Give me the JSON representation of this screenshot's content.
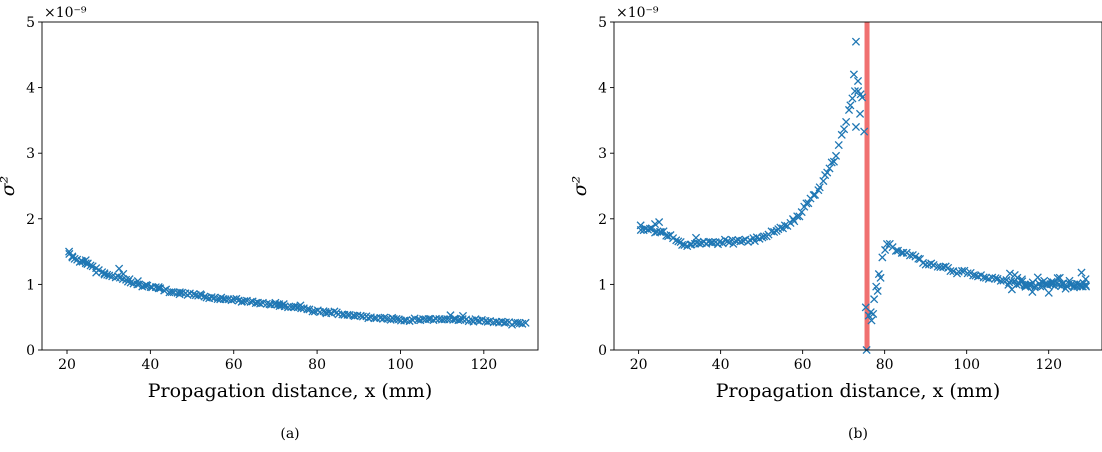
{
  "colors": {
    "marker": "#1f77b4",
    "highlight": "#f07070",
    "axis": "#000000"
  },
  "chart_data": [
    {
      "type": "scatter",
      "caption": "(a)",
      "xlabel": "Propagation distance, x (mm)",
      "ylabel": "σ²",
      "y_scale_label": "×10⁻⁹",
      "xlim": [
        14,
        133
      ],
      "ylim": [
        0,
        5
      ],
      "xticks": [
        20,
        40,
        60,
        80,
        100,
        120
      ],
      "yticks": [
        0,
        1,
        2,
        3,
        4,
        5
      ],
      "marker": "x",
      "curve": [
        [
          20.5,
          1.46
        ],
        [
          22,
          1.38
        ],
        [
          24,
          1.33
        ],
        [
          26,
          1.29
        ],
        [
          28,
          1.2
        ],
        [
          30,
          1.13
        ],
        [
          33,
          1.1
        ],
        [
          36,
          1.01
        ],
        [
          40,
          0.96
        ],
        [
          45,
          0.89
        ],
        [
          50,
          0.84
        ],
        [
          55,
          0.8
        ],
        [
          60,
          0.76
        ],
        [
          65,
          0.73
        ],
        [
          70,
          0.69
        ],
        [
          75,
          0.64
        ],
        [
          80,
          0.59
        ],
        [
          85,
          0.56
        ],
        [
          90,
          0.52
        ],
        [
          95,
          0.49
        ],
        [
          100,
          0.46
        ],
        [
          105,
          0.46
        ],
        [
          110,
          0.47
        ],
        [
          115,
          0.46
        ],
        [
          120,
          0.44
        ],
        [
          125,
          0.42
        ],
        [
          130,
          0.41
        ]
      ],
      "outliers": [
        [
          20.5,
          1.5
        ],
        [
          21.3,
          1.41
        ],
        [
          23.5,
          1.36
        ],
        [
          24.5,
          1.37
        ],
        [
          25,
          1.32
        ],
        [
          27,
          1.18
        ],
        [
          29,
          1.15
        ],
        [
          32.5,
          1.24
        ],
        [
          33.5,
          1.16
        ],
        [
          35,
          1.08
        ],
        [
          37,
          1.05
        ],
        [
          39,
          0.99
        ],
        [
          42,
          0.96
        ],
        [
          47,
          0.85
        ],
        [
          52,
          0.85
        ],
        [
          57,
          0.8
        ],
        [
          62,
          0.74
        ],
        [
          70,
          0.72
        ],
        [
          71,
          0.67
        ],
        [
          72,
          0.7
        ],
        [
          76,
          0.68
        ],
        [
          82,
          0.58
        ],
        [
          98,
          0.49
        ],
        [
          112,
          0.53
        ],
        [
          113,
          0.48
        ],
        [
          115,
          0.52
        ],
        [
          118,
          0.47
        ]
      ],
      "n_points": 170,
      "noise": 0.02
    },
    {
      "type": "scatter",
      "caption": "(b)",
      "xlabel": "Propagation distance, x (mm)",
      "ylabel": "σ²",
      "y_scale_label": "×10⁻⁹",
      "xlim": [
        14,
        133
      ],
      "ylim": [
        0,
        5
      ],
      "xticks": [
        20,
        40,
        60,
        80,
        100,
        120
      ],
      "yticks": [
        0,
        1,
        2,
        3,
        4,
        5
      ],
      "marker": "x",
      "highlight_x": 75.7,
      "segments": [
        {
          "curve": [
            [
              20.5,
              1.85
            ],
            [
              22,
              1.83
            ],
            [
              24,
              1.84
            ],
            [
              26,
              1.8
            ],
            [
              28,
              1.72
            ],
            [
              30,
              1.62
            ],
            [
              32,
              1.6
            ],
            [
              34,
              1.64
            ],
            [
              36,
              1.62
            ],
            [
              40,
              1.64
            ],
            [
              45,
              1.66
            ],
            [
              50,
              1.72
            ],
            [
              55,
              1.85
            ],
            [
              58,
              2.0
            ],
            [
              60,
              2.12
            ],
            [
              62,
              2.3
            ],
            [
              64,
              2.45
            ],
            [
              66,
              2.72
            ],
            [
              68,
              2.95
            ],
            [
              70,
              3.35
            ],
            [
              71,
              3.55
            ],
            [
              72,
              3.8
            ],
            [
              73,
              4.0
            ],
            [
              74,
              3.9
            ]
          ],
          "n_points": 95,
          "noise": 0.04
        },
        {
          "curve": [
            [
              76,
              0.5
            ],
            [
              77,
              0.6
            ],
            [
              78,
              1.0
            ],
            [
              79,
              1.3
            ],
            [
              80,
              1.55
            ],
            [
              81,
              1.62
            ],
            [
              82,
              1.55
            ],
            [
              84,
              1.5
            ],
            [
              86,
              1.45
            ],
            [
              88,
              1.4
            ],
            [
              90,
              1.34
            ],
            [
              92,
              1.3
            ],
            [
              95,
              1.24
            ],
            [
              100,
              1.17
            ],
            [
              105,
              1.1
            ],
            [
              110,
              1.05
            ],
            [
              115,
              1.0
            ],
            [
              120,
              1.0
            ],
            [
              125,
              0.98
            ],
            [
              129,
              0.98
            ]
          ],
          "n_points": 80,
          "noise": 0.04
        },
        {
          "curve": [
            [
              110,
              1.0
            ],
            [
              115,
              1.0
            ],
            [
              120,
              0.98
            ],
            [
              125,
              0.98
            ],
            [
              129,
              0.96
            ]
          ],
          "n_points": 35,
          "noise": 0.14
        }
      ],
      "outliers": [
        [
          72.5,
          4.2
        ],
        [
          73,
          4.7
        ],
        [
          73.5,
          4.1
        ],
        [
          74,
          3.6
        ],
        [
          74.5,
          3.85
        ],
        [
          73,
          3.4
        ],
        [
          75,
          3.33
        ],
        [
          75.4,
          0.65
        ],
        [
          75.6,
          0.0
        ],
        [
          76.8,
          0.45
        ],
        [
          77.2,
          0.55
        ],
        [
          78.3,
          0.9
        ],
        [
          79,
          1.1
        ],
        [
          20.5,
          1.9
        ],
        [
          24,
          1.92
        ],
        [
          25,
          1.95
        ],
        [
          34,
          1.71
        ],
        [
          128,
          1.18
        ],
        [
          129,
          1.08
        ]
      ]
    }
  ]
}
